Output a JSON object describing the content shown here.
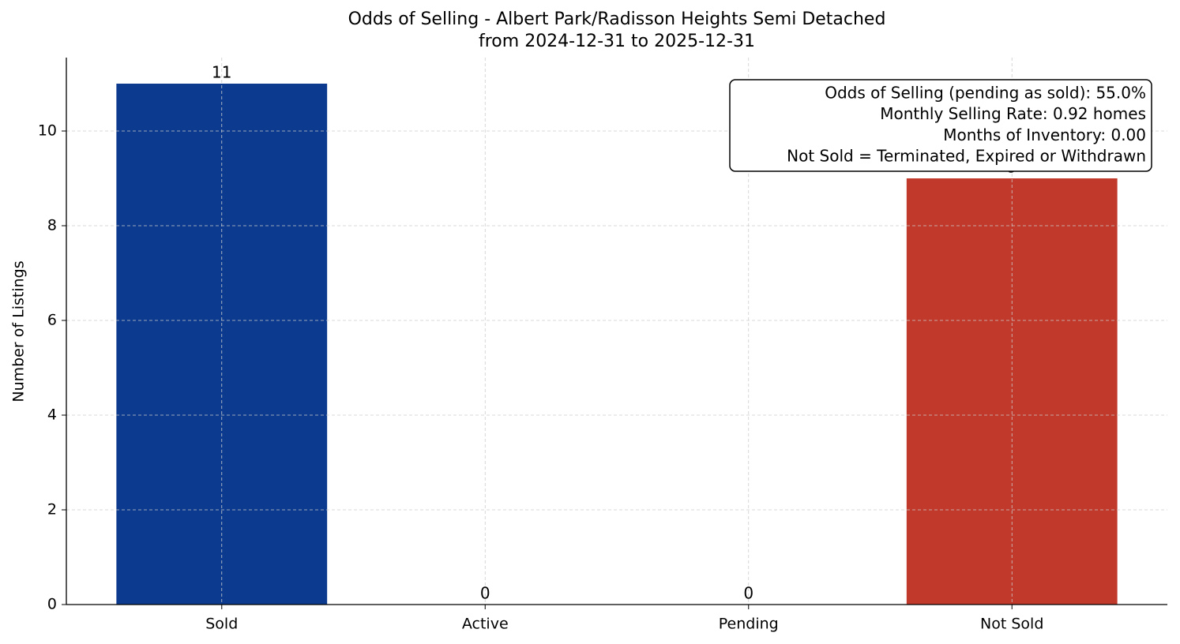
{
  "chart_data": {
    "type": "bar",
    "title": [
      "Odds of Selling - Albert Park/Radisson Heights Semi Detached",
      "from 2024-12-31 to 2025-12-31"
    ],
    "y_label": "Number of Listings",
    "categories": [
      "Sold",
      "Active",
      "Pending",
      "Not Sold"
    ],
    "values": [
      11,
      0,
      0,
      9
    ],
    "colors": [
      "#0b3a8e",
      "#2e8b57",
      "#f39c12",
      "#c0392b"
    ],
    "ylim": [
      0,
      11.55
    ],
    "yticks": [
      0,
      2,
      4,
      6,
      8,
      10
    ],
    "grid": true,
    "annotation": [
      "Odds of Selling (pending as sold): 55.0%",
      "Monthly Selling Rate: 0.92 homes",
      "Months of Inventory: 0.00",
      "Not Sold = Terminated, Expired or Withdrawn"
    ]
  }
}
